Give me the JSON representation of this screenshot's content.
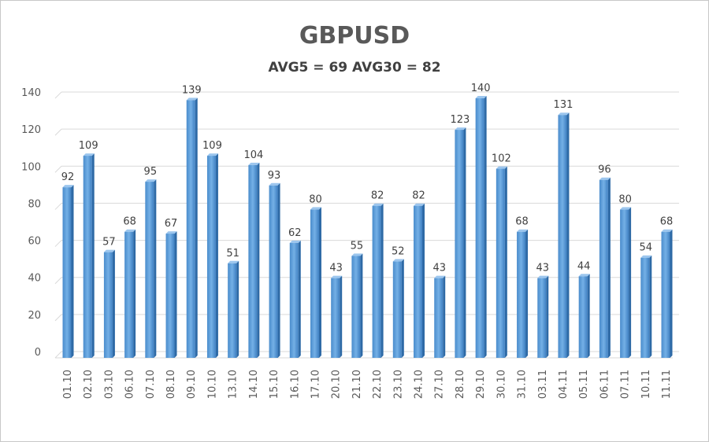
{
  "chart_data": {
    "type": "bar",
    "title": "GBPUSD",
    "subtitle": "AVG5 = 69 AVG30 = 82",
    "categories": [
      "01.10",
      "02.10",
      "03.10",
      "06.10",
      "07.10",
      "08.10",
      "09.10",
      "10.10",
      "13.10",
      "14.10",
      "15.10",
      "16.10",
      "17.10",
      "20.10",
      "21.10",
      "22.10",
      "23.10",
      "24.10",
      "27.10",
      "28.10",
      "29.10",
      "30.10",
      "31.10",
      "03.11",
      "04.11",
      "05.11",
      "06.11",
      "07.11",
      "10.11",
      "11.11"
    ],
    "values": [
      92,
      109,
      57,
      68,
      95,
      67,
      139,
      109,
      51,
      104,
      93,
      62,
      80,
      43,
      55,
      82,
      52,
      82,
      43,
      123,
      140,
      102,
      68,
      43,
      131,
      44,
      96,
      80,
      54,
      68
    ],
    "ylim": [
      0,
      140
    ],
    "yticks": [
      0,
      20,
      40,
      60,
      80,
      100,
      120,
      140
    ],
    "grid": true,
    "bar_color": "#5b9bd5",
    "data_labels": true
  }
}
